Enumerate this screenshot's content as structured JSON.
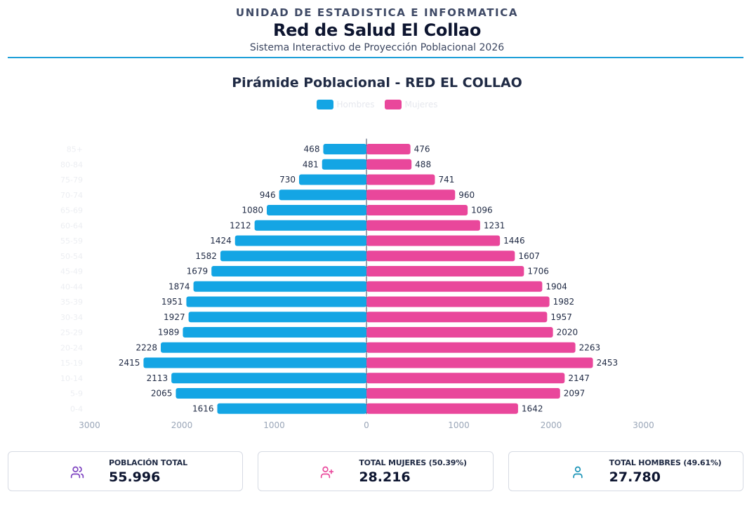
{
  "header": {
    "org": "UNIDAD DE ESTADISTICA E INFORMATICA",
    "title": "Red de Salud El Collao",
    "subtitle": "Sistema Interactivo de Proyección Poblacional 2026"
  },
  "chart_data": {
    "type": "bar",
    "orientation": "horizontal-population-pyramid",
    "title": "Pirámide Poblacional - RED EL COLLAO",
    "categories": [
      "0-4",
      "5-9",
      "10-14",
      "15-19",
      "20-24",
      "25-29",
      "30-34",
      "35-39",
      "40-44",
      "45-49",
      "50-54",
      "55-59",
      "60-64",
      "65-69",
      "70-74",
      "75-79",
      "80-84",
      "85+"
    ],
    "series": [
      {
        "name": "Hombres",
        "color": "#14a5e4",
        "values": [
          1616,
          2065,
          2113,
          2415,
          2228,
          1989,
          1927,
          1951,
          1874,
          1679,
          1582,
          1424,
          1212,
          1080,
          946,
          730,
          481,
          468
        ]
      },
      {
        "name": "Mujeres",
        "color": "#e9479b",
        "values": [
          1642,
          2097,
          2147,
          2453,
          2263,
          2020,
          1957,
          1982,
          1904,
          1706,
          1607,
          1446,
          1231,
          1096,
          960,
          741,
          488,
          476
        ]
      }
    ],
    "xlim": [
      -3000,
      3000
    ],
    "xticks": [
      -3000,
      -2000,
      -1000,
      0,
      1000,
      2000,
      3000
    ],
    "xtick_labels": [
      "3000",
      "2000",
      "1000",
      "0",
      "1000",
      "2000",
      "3000"
    ],
    "xlabel": "",
    "ylabel": "",
    "grid": false,
    "legend": "top-center"
  },
  "cards": [
    {
      "label": "POBLACIÓN TOTAL",
      "value": "55.996",
      "icon": "users-icon",
      "color": "#7b3fbf"
    },
    {
      "label": "TOTAL MUJERES (50.39%)",
      "value": "28.216",
      "icon": "user-plus-icon",
      "color": "#e9479b"
    },
    {
      "label": "TOTAL HOMBRES (49.61%)",
      "value": "27.780",
      "icon": "user-icon",
      "color": "#1591b5"
    }
  ]
}
